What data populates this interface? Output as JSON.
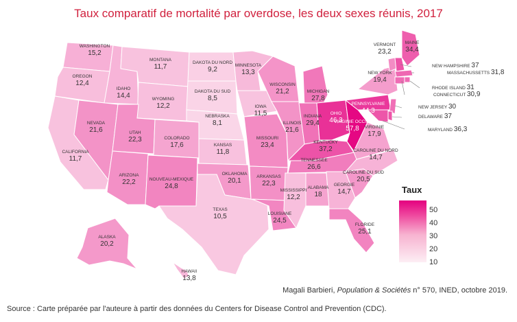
{
  "title": "Taux comparatif de mortalité par overdose, les deux sexes réunis, 2017",
  "legend": {
    "title": "Taux",
    "ticks": [
      "50",
      "40",
      "30",
      "20",
      "10"
    ]
  },
  "credit": {
    "author": "Magali Barbieri, ",
    "publication": "Population & Sociétés",
    "rest": " n° 570, INED, octobre 2019."
  },
  "source": "Source :  Carte préparée par l'auteure à partir des données du Centers for Disease Control and Prevention (CDC).",
  "colors": {
    "title": "#d01f3c",
    "low": "#fdeef4",
    "high": "#e4007f"
  },
  "states": [
    {
      "id": "washington",
      "name": "WASHINGTON",
      "value": "15,2",
      "rate": 15.2
    },
    {
      "id": "oregon",
      "name": "OREGON",
      "value": "12,4",
      "rate": 12.4
    },
    {
      "id": "california",
      "name": "CALIFORNIA",
      "value": "11,7",
      "rate": 11.7
    },
    {
      "id": "idaho",
      "name": "IDAHO",
      "value": "14,4",
      "rate": 14.4
    },
    {
      "id": "nevada",
      "name": "NEVADA",
      "value": "21,6",
      "rate": 21.6
    },
    {
      "id": "montana",
      "name": "MONTANA",
      "value": "11,7",
      "rate": 11.7
    },
    {
      "id": "wyoming",
      "name": "WYOMING",
      "value": "12,2",
      "rate": 12.2
    },
    {
      "id": "utah",
      "name": "UTAH",
      "value": "22,3",
      "rate": 22.3
    },
    {
      "id": "arizona",
      "name": "ARIZONA",
      "value": "22,2",
      "rate": 22.2
    },
    {
      "id": "colorado",
      "name": "COLORADO",
      "value": "17,6",
      "rate": 17.6
    },
    {
      "id": "nouveau-mexique",
      "name": "NOUVEAU-MEXIQUE",
      "value": "24,8",
      "rate": 24.8
    },
    {
      "id": "dakota-du-nord",
      "name": "DAKOTA DU NORD",
      "value": "9,2",
      "rate": 9.2
    },
    {
      "id": "dakota-du-sud",
      "name": "DAKOTA DU SUD",
      "value": "8,5",
      "rate": 8.5
    },
    {
      "id": "nebraska",
      "name": "NEBRASKA",
      "value": "8,1",
      "rate": 8.1
    },
    {
      "id": "kansas",
      "name": "KANSAS",
      "value": "11,8",
      "rate": 11.8
    },
    {
      "id": "oklahoma",
      "name": "OKLAHOMA",
      "value": "20,1",
      "rate": 20.1
    },
    {
      "id": "texas",
      "name": "TEXAS",
      "value": "10,5",
      "rate": 10.5
    },
    {
      "id": "minnesota",
      "name": "MINNESOTA",
      "value": "13,3",
      "rate": 13.3
    },
    {
      "id": "iowa",
      "name": "IOWA",
      "value": "11,5",
      "rate": 11.5
    },
    {
      "id": "missouri",
      "name": "MISSOURI",
      "value": "23,4",
      "rate": 23.4
    },
    {
      "id": "arkansas",
      "name": "ARKANSAS",
      "value": "22,3",
      "rate": 22.3
    },
    {
      "id": "louisiane",
      "name": "LOUISIANE",
      "value": "24,5",
      "rate": 24.5
    },
    {
      "id": "wisconsin",
      "name": "WISCONSIN",
      "value": "21,2",
      "rate": 21.2
    },
    {
      "id": "illinois",
      "name": "ILLINOIS",
      "value": "21,6",
      "rate": 21.6
    },
    {
      "id": "michigan",
      "name": "MICHIGAN",
      "value": "27,8",
      "rate": 27.8
    },
    {
      "id": "indiana",
      "name": "INDIANA",
      "value": "29,4",
      "rate": 29.4
    },
    {
      "id": "ohio",
      "name": "OHIO",
      "value": "46,3",
      "rate": 46.3
    },
    {
      "id": "kentucky",
      "name": "KENTUCKY",
      "value": "37,2",
      "rate": 37.2
    },
    {
      "id": "tennessee",
      "name": "TENNESSEE",
      "value": "26,6",
      "rate": 26.6
    },
    {
      "id": "mississippi",
      "name": "MISSISSIPPI",
      "value": "12,2",
      "rate": 12.2
    },
    {
      "id": "alabama",
      "name": "ALABAMA",
      "value": "18",
      "rate": 18
    },
    {
      "id": "georgie",
      "name": "GEORGIE",
      "value": "14,7",
      "rate": 14.7
    },
    {
      "id": "floride",
      "name": "FLORIDE",
      "value": "25,1",
      "rate": 25.1
    },
    {
      "id": "caroline-du-sud",
      "name": "CAROLINE DU SUD",
      "value": "20,5",
      "rate": 20.5
    },
    {
      "id": "caroline-du-nord",
      "name": "CAROLINE DU NORD",
      "value": "14,7",
      "rate": 14.7
    },
    {
      "id": "virginie",
      "name": "VIRGINIE",
      "value": "17,9",
      "rate": 17.9
    },
    {
      "id": "virginie-occid",
      "name": "VIRGINIE OCCID.",
      "value": "57,8",
      "rate": 57.8
    },
    {
      "id": "pennsylvanie",
      "name": "PENNSYLVANIE",
      "value": "44,3",
      "rate": 44.3
    },
    {
      "id": "new-york",
      "name": "NEW YORK",
      "value": "19,4",
      "rate": 19.4
    },
    {
      "id": "vermont",
      "name": "VERMONT",
      "value": "23,2",
      "rate": 23.2
    },
    {
      "id": "maine",
      "name": "MAINE",
      "value": "34,4",
      "rate": 34.4
    },
    {
      "id": "new-hampshire",
      "name": "NEW HAMPSHIRE",
      "value": "37",
      "rate": 37
    },
    {
      "id": "massachussetts",
      "name": "MASSACHUSSETTS",
      "value": "31,8",
      "rate": 31.8
    },
    {
      "id": "rhode-island",
      "name": "RHODE ISLAND",
      "value": "31",
      "rate": 31
    },
    {
      "id": "connecticut",
      "name": "CONNECTICUT",
      "value": "30,9",
      "rate": 30.9
    },
    {
      "id": "new-jersey",
      "name": "NEW JERSEY",
      "value": "30",
      "rate": 30
    },
    {
      "id": "delaware",
      "name": "DELAWARE",
      "value": "37",
      "rate": 37
    },
    {
      "id": "maryland",
      "name": "MARYLAND",
      "value": "36,3",
      "rate": 36.3
    },
    {
      "id": "alaska",
      "name": "ALASKA",
      "value": "20,2",
      "rate": 20.2
    },
    {
      "id": "hawaii",
      "name": "HAWAII",
      "value": "13,8",
      "rate": 13.8
    }
  ]
}
